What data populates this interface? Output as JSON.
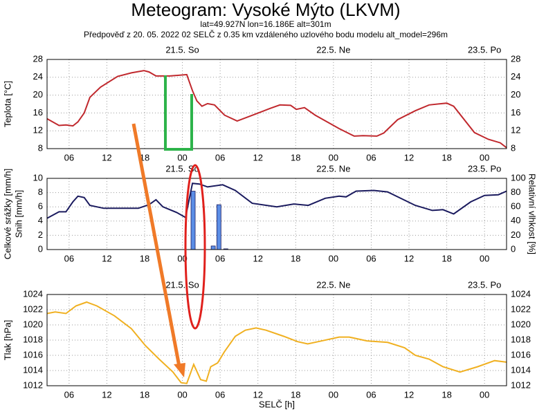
{
  "header": {
    "title": "Meteogram: Vysoké Mýto (LKVM)",
    "subtitle": [
      "lat=49.927N lon=16.186E alt=301m",
      "Předpověď z 20. 05. 2022 02 SELČ z 0.35 km vzdáleného uzlového bodu modelu alt_model=296m"
    ]
  },
  "chart_data": [
    {
      "type": "line",
      "ylabel": [
        "Teplota [°C]"
      ],
      "xlim": [
        2.5,
        75.5
      ],
      "ylim": [
        8,
        28
      ],
      "yticks": [
        8,
        12,
        16,
        20,
        24,
        28
      ],
      "mirror_yticks": true,
      "grid": true,
      "xticks": [
        {
          "value": 6,
          "label": "06"
        },
        {
          "value": 12,
          "label": "12"
        },
        {
          "value": 18,
          "label": "18"
        },
        {
          "value": 24,
          "label": "00"
        },
        {
          "value": 30,
          "label": "06"
        },
        {
          "value": 36,
          "label": "12"
        },
        {
          "value": 42,
          "label": "18"
        },
        {
          "value": 48,
          "label": "00"
        },
        {
          "value": 54,
          "label": "06"
        },
        {
          "value": 60,
          "label": "12"
        },
        {
          "value": 66,
          "label": "18"
        },
        {
          "value": 72,
          "label": "00"
        }
      ],
      "x2ticks": [
        {
          "value": 24,
          "label": "21.5. So"
        },
        {
          "value": 48,
          "label": "22.5. Ne"
        },
        {
          "value": 72,
          "label": "23.5. Po"
        }
      ],
      "series": [
        {
          "type": "line",
          "color": "#c0282d",
          "x": [
            2.5,
            4.4,
            5.5,
            6.6,
            7.4,
            8.4,
            9.3,
            11,
            13.7,
            15.9,
            17.9,
            18.7,
            19.8,
            22,
            24.7,
            25.6,
            26.3,
            27.1,
            28,
            29.1,
            30.7,
            32.7,
            35.7,
            37.9,
            39.5,
            41.2,
            42.1,
            43.4,
            45.1,
            48.9,
            51.3,
            52.7,
            54.9,
            56,
            58.2,
            61,
            63.2,
            66,
            67.1,
            70.4,
            72.6,
            74.5,
            75.5
          ],
          "values": [
            14.7,
            13.2,
            13.3,
            13.1,
            14,
            16,
            19.5,
            21.8,
            24.2,
            25,
            25.5,
            25.2,
            24.3,
            24.3,
            24.6,
            21,
            18.7,
            17.5,
            18.1,
            17.8,
            15.5,
            14.2,
            15.8,
            17,
            17.8,
            17.7,
            16.8,
            17.2,
            15.5,
            12.5,
            10.8,
            10.9,
            10.8,
            11.5,
            14.5,
            16.5,
            17.8,
            18.2,
            17.5,
            11.6,
            10.1,
            9.3,
            8.2
          ]
        }
      ]
    },
    {
      "type": "combo",
      "ylabel": [
        "Celkové srážky [mm/h]",
        "Snih [mm/h]"
      ],
      "y2label": "Relativní vlhkost [%]",
      "xlim": [
        2.5,
        75.5
      ],
      "ylim": [
        0,
        10
      ],
      "yticks": [
        0,
        2,
        4,
        6,
        8,
        10
      ],
      "y2lim": [
        0,
        100
      ],
      "y2ticks": [
        0,
        20,
        40,
        60,
        80,
        100
      ],
      "grid": true,
      "xticks": [
        {
          "value": 6,
          "label": "06"
        },
        {
          "value": 12,
          "label": "12"
        },
        {
          "value": 18,
          "label": "18"
        },
        {
          "value": 24,
          "label": "00"
        },
        {
          "value": 30,
          "label": "06"
        },
        {
          "value": 36,
          "label": "12"
        },
        {
          "value": 42,
          "label": "18"
        },
        {
          "value": 48,
          "label": "00"
        },
        {
          "value": 54,
          "label": "06"
        },
        {
          "value": 60,
          "label": "12"
        },
        {
          "value": 66,
          "label": "18"
        },
        {
          "value": 72,
          "label": "00"
        }
      ],
      "x2ticks": [
        {
          "value": 24,
          "label": "21.5. So"
        },
        {
          "value": 48,
          "label": "22.5. Ne"
        },
        {
          "value": 72,
          "label": "23.5. Po"
        }
      ],
      "series": [
        {
          "type": "bar",
          "color": "#5b8ee6",
          "x": [
            25.7,
            28.9,
            29.8,
            30.9
          ],
          "values": [
            8.2,
            0.5,
            6.3,
            0.1
          ]
        },
        {
          "type": "line",
          "axis": "y2",
          "color": "#1a1a5e",
          "x": [
            2.5,
            4.4,
            5.5,
            6.6,
            7.4,
            8.4,
            9.3,
            11.5,
            17,
            18.7,
            19.8,
            20.9,
            23.1,
            24.5,
            25.6,
            26.7,
            28,
            30.4,
            32.4,
            35.1,
            39,
            41.7,
            44,
            46.7,
            48.9,
            50,
            51.6,
            54.4,
            56.6,
            61,
            63.7,
            65.4,
            67.1,
            69.8,
            72,
            74.2,
            75.5
          ],
          "values": [
            44,
            53,
            53,
            67,
            75,
            73,
            62,
            58,
            58,
            63,
            70,
            60,
            52,
            45,
            93,
            92,
            88,
            91,
            83,
            65,
            60,
            64,
            62,
            72,
            75,
            74,
            82,
            83,
            81,
            62,
            55,
            56,
            50,
            67,
            76,
            77,
            82
          ]
        }
      ]
    },
    {
      "type": "line",
      "ylabel": [
        "Tlak [hPa]"
      ],
      "xlabel": "SELČ [h]",
      "xlim": [
        2.5,
        75.5
      ],
      "ylim": [
        1012,
        1024
      ],
      "yticks": [
        1012,
        1014,
        1016,
        1018,
        1020,
        1022,
        1024
      ],
      "mirror_yticks": true,
      "grid": true,
      "xticks": [
        {
          "value": 6,
          "label": "06"
        },
        {
          "value": 12,
          "label": "12"
        },
        {
          "value": 18,
          "label": "18"
        },
        {
          "value": 24,
          "label": "00"
        },
        {
          "value": 30,
          "label": "06"
        },
        {
          "value": 36,
          "label": "12"
        },
        {
          "value": 42,
          "label": "18"
        },
        {
          "value": 48,
          "label": "00"
        },
        {
          "value": 54,
          "label": "06"
        },
        {
          "value": 60,
          "label": "12"
        },
        {
          "value": 66,
          "label": "18"
        },
        {
          "value": 72,
          "label": "00"
        }
      ],
      "x2ticks": [
        {
          "value": 24,
          "label": "21.5. So"
        },
        {
          "value": 48,
          "label": "22.5. Ne"
        },
        {
          "value": 72,
          "label": "23.5. Po"
        }
      ],
      "series": [
        {
          "type": "line",
          "color": "#f0b020",
          "x": [
            2.5,
            3.8,
            5.5,
            7.1,
            8.8,
            10.4,
            13.2,
            15.9,
            18.1,
            20.3,
            22.5,
            23.8,
            24.7,
            25.8,
            26.9,
            27.8,
            28.5,
            29.6,
            30.7,
            32.4,
            34,
            35.7,
            37.3,
            40.1,
            42.3,
            43.9,
            45.6,
            48.9,
            50.5,
            53.3,
            56.6,
            59.3,
            61,
            63.2,
            65.4,
            68.1,
            70.9,
            73.6,
            75.5
          ],
          "values": [
            1021.5,
            1021.7,
            1021.5,
            1022.5,
            1023,
            1022.5,
            1021.2,
            1019.5,
            1017.3,
            1015.5,
            1013.8,
            1012.4,
            1012.3,
            1014.8,
            1012.8,
            1012.6,
            1014.5,
            1015,
            1016.5,
            1018.5,
            1019.3,
            1019.6,
            1019.3,
            1018.5,
            1017.8,
            1017.5,
            1017.8,
            1018.4,
            1018.4,
            1017.9,
            1017.7,
            1017,
            1016,
            1015.5,
            1014.5,
            1013.8,
            1014.5,
            1015.3,
            1015.1
          ]
        }
      ]
    }
  ]
}
